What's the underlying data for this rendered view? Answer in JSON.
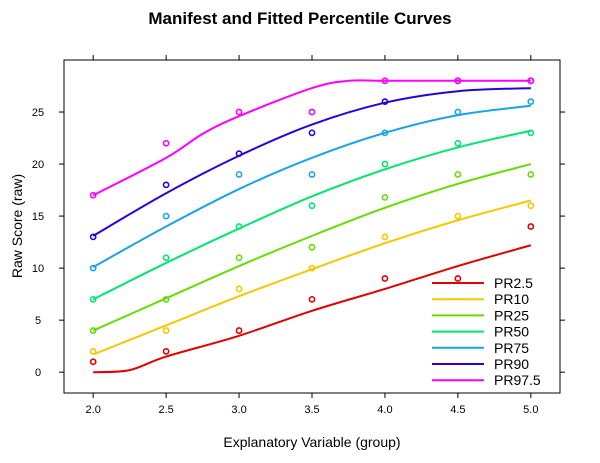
{
  "chart_data": {
    "type": "line",
    "title": "Manifest and Fitted Percentile Curves",
    "xlabel": "Explanatory Variable (group)",
    "ylabel": "Raw Score (raw)",
    "xlim": [
      1.8,
      5.2
    ],
    "ylim": [
      -2,
      30
    ],
    "xticks": [
      2.0,
      2.5,
      3.0,
      3.5,
      4.0,
      4.5,
      5.0
    ],
    "xtick_labels": [
      "2.0",
      "2.5",
      "3.0",
      "3.5",
      "4.0",
      "4.5",
      "5.0"
    ],
    "yticks": [
      0,
      5,
      10,
      15,
      20,
      25
    ],
    "ytick_labels": [
      "0",
      "5",
      "10",
      "15",
      "20",
      "25"
    ],
    "grid": false,
    "legend_position": "bottom-right",
    "x": [
      2.0,
      2.5,
      3.0,
      3.5,
      4.0,
      4.5,
      5.0
    ],
    "series": [
      {
        "name": "PR2.5",
        "color": "#e00000",
        "points": [
          1,
          2,
          4,
          7,
          9,
          9,
          14
        ],
        "curve": [
          [
            2.0,
            0.0
          ],
          [
            2.25,
            0.2
          ],
          [
            2.5,
            1.5
          ],
          [
            3.0,
            3.5
          ],
          [
            3.5,
            5.9
          ],
          [
            4.0,
            8.0
          ],
          [
            4.5,
            10.2
          ],
          [
            5.0,
            12.2
          ]
        ]
      },
      {
        "name": "PR10",
        "color": "#f5c800",
        "points": [
          2,
          4,
          8,
          10,
          13,
          15,
          16
        ],
        "curve": [
          [
            2.0,
            1.7
          ],
          [
            2.5,
            4.5
          ],
          [
            3.0,
            7.3
          ],
          [
            3.5,
            9.9
          ],
          [
            4.0,
            12.4
          ],
          [
            4.5,
            14.6
          ],
          [
            5.0,
            16.5
          ]
        ]
      },
      {
        "name": "PR25",
        "color": "#66dd00",
        "points": [
          4,
          7,
          11,
          12,
          16.8,
          19,
          19
        ],
        "curve": [
          [
            2.0,
            4.0
          ],
          [
            2.5,
            7.1
          ],
          [
            3.0,
            10.2
          ],
          [
            3.5,
            13.1
          ],
          [
            4.0,
            15.8
          ],
          [
            4.5,
            18.1
          ],
          [
            5.0,
            20.0
          ]
        ]
      },
      {
        "name": "PR50",
        "color": "#00e66e",
        "points": [
          7,
          11,
          14,
          16,
          20,
          22,
          23
        ],
        "curve": [
          [
            2.0,
            7.0
          ],
          [
            2.5,
            10.5
          ],
          [
            3.0,
            13.8
          ],
          [
            3.5,
            16.9
          ],
          [
            4.0,
            19.5
          ],
          [
            4.5,
            21.6
          ],
          [
            5.0,
            23.2
          ]
        ]
      },
      {
        "name": "PR75",
        "color": "#1aa3e6",
        "points": [
          10,
          15,
          19,
          19,
          23,
          25,
          26
        ],
        "curve": [
          [
            2.0,
            10.1
          ],
          [
            2.5,
            14.0
          ],
          [
            3.0,
            17.6
          ],
          [
            3.5,
            20.6
          ],
          [
            4.0,
            23.0
          ],
          [
            4.5,
            24.7
          ],
          [
            5.0,
            25.6
          ]
        ]
      },
      {
        "name": "PR90",
        "color": "#2b00e0",
        "points": [
          13,
          18,
          21,
          23,
          26,
          28,
          28
        ],
        "curve": [
          [
            2.0,
            13.1
          ],
          [
            2.5,
            17.2
          ],
          [
            3.0,
            20.8
          ],
          [
            3.5,
            23.8
          ],
          [
            4.0,
            25.9
          ],
          [
            4.5,
            27.0
          ],
          [
            5.0,
            27.3
          ]
        ]
      },
      {
        "name": "PR97.5",
        "color": "#ff00ff",
        "points": [
          17,
          22,
          25,
          25,
          28,
          28,
          28
        ],
        "curve": [
          [
            2.0,
            17.0
          ],
          [
            2.5,
            20.6
          ],
          [
            2.75,
            22.9
          ],
          [
            3.0,
            24.6
          ],
          [
            3.5,
            27.3
          ],
          [
            3.75,
            28.0
          ],
          [
            4.0,
            28.0
          ],
          [
            4.5,
            28.0
          ],
          [
            5.0,
            28.0
          ]
        ]
      }
    ]
  }
}
